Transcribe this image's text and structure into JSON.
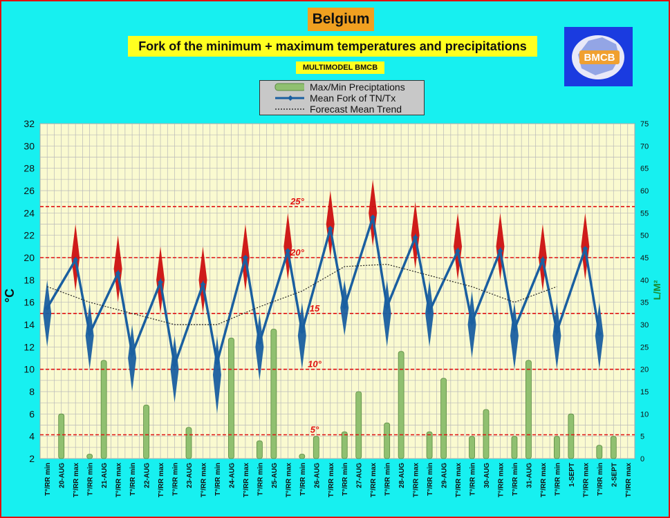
{
  "header": {
    "country": "Belgium",
    "subtitle": "Fork of the minimum + maximum temperatures and precipitations",
    "model": "MULTIMODEL BMCB",
    "logo_text": "BMCB"
  },
  "legend": {
    "items": [
      {
        "label": "Max/Min Preciptations",
        "icon": "precip-bar-swatch"
      },
      {
        "label": "Mean Fork of TN/Tx",
        "icon": "blue-line-diamond-swatch"
      },
      {
        "label": "Forecast Mean Trend",
        "icon": "dotted-line-swatch"
      }
    ]
  },
  "chart_data": {
    "type": "line",
    "y_left": {
      "label": "°C",
      "range": [
        2,
        32
      ],
      "ticks": [
        2,
        4,
        6,
        8,
        10,
        12,
        14,
        16,
        18,
        20,
        22,
        24,
        26,
        28,
        30,
        32
      ]
    },
    "y_right": {
      "label": "L/M²",
      "range": [
        0,
        75
      ],
      "ticks": [
        0,
        5,
        10,
        15,
        20,
        25,
        30,
        35,
        40,
        45,
        50,
        55,
        60,
        65,
        70,
        75
      ]
    },
    "x_categories": [
      "T°/RR min",
      "20-AUG",
      "T°/RR max",
      "T°/RR min",
      "21-AUG",
      "T°/RR max",
      "T°/RR min",
      "22-AUG",
      "T°/RR max",
      "T°/RR min",
      "23-AUG",
      "T°/RR max",
      "T°/RR min",
      "24-AUG",
      "T°/RR max",
      "T°/RR min",
      "25-AUG",
      "T°/RR max",
      "T°/RR min",
      "26-AUG",
      "T°/RR max",
      "T°/RR min",
      "27-AUG",
      "T°/RR max",
      "T°/RR min",
      "28-AUG",
      "T°/RR max",
      "T°/RR min",
      "29-AUG",
      "T°/RR max",
      "T°/RR min",
      "30-AUG",
      "T°/RR max",
      "T°/RR min",
      "31-AUG",
      "T°/RR max",
      "T°/RR min",
      "1-SEPT",
      "T°/RR max",
      "T°/RR min",
      "2-SEPT",
      "T°/RR max"
    ],
    "mean_fork": [
      15.5,
      19.8,
      13.2,
      18.6,
      11.4,
      17.8,
      10.4,
      17.6,
      10.6,
      20.0,
      12.4,
      20.6,
      13.4,
      22.6,
      15.6,
      23.6,
      15.6,
      21.8,
      15.2,
      20.6,
      14.2,
      20.6,
      13.6,
      19.8,
      13.4,
      20.8,
      13.2
    ],
    "spread": [
      [
        12,
        18
      ],
      [
        17,
        23
      ],
      [
        10,
        16
      ],
      [
        16,
        22
      ],
      [
        8,
        14
      ],
      [
        15,
        21
      ],
      [
        7,
        13
      ],
      [
        15,
        21
      ],
      [
        6,
        13
      ],
      [
        17,
        23
      ],
      [
        9,
        15
      ],
      [
        18,
        24
      ],
      [
        10,
        16
      ],
      [
        20,
        26
      ],
      [
        13,
        18
      ],
      [
        21,
        27
      ],
      [
        12,
        18
      ],
      [
        19,
        25
      ],
      [
        12,
        18
      ],
      [
        18,
        24
      ],
      [
        11,
        17
      ],
      [
        18,
        24
      ],
      [
        10,
        16
      ],
      [
        17,
        23
      ],
      [
        10,
        16
      ],
      [
        18,
        24
      ],
      [
        10,
        16
      ]
    ],
    "trend": [
      [
        0.0,
        17.4
      ],
      [
        1.0,
        16.0
      ],
      [
        2.0,
        15.0
      ],
      [
        3.0,
        14.0
      ],
      [
        4.0,
        14.0
      ],
      [
        5.0,
        15.6
      ],
      [
        6.0,
        17.0
      ],
      [
        7.0,
        19.2
      ],
      [
        8.0,
        19.4
      ],
      [
        9.0,
        18.4
      ],
      [
        10.0,
        17.4
      ],
      [
        11.0,
        16.0
      ],
      [
        12.0,
        17.4
      ]
    ],
    "precip": [
      0,
      10,
      1,
      22,
      0,
      12,
      0,
      7,
      0,
      27,
      4,
      29,
      1,
      5,
      6,
      15,
      8,
      24,
      6,
      18,
      5,
      11,
      5,
      22,
      5,
      10,
      3,
      5
    ],
    "reference_lines": [
      {
        "label": "25°",
        "value": 25
      },
      {
        "label": "20°",
        "value": 20
      },
      {
        "label": "15",
        "value": 15
      },
      {
        "label": "10°",
        "value": 10
      },
      {
        "label": "5°",
        "value": 5
      }
    ],
    "colors": {
      "mean": "#1a5fa0",
      "spread": "#cc1010",
      "precip": "#90c070",
      "plot_bg": "#fafad0",
      "refline": "#e01010"
    }
  }
}
